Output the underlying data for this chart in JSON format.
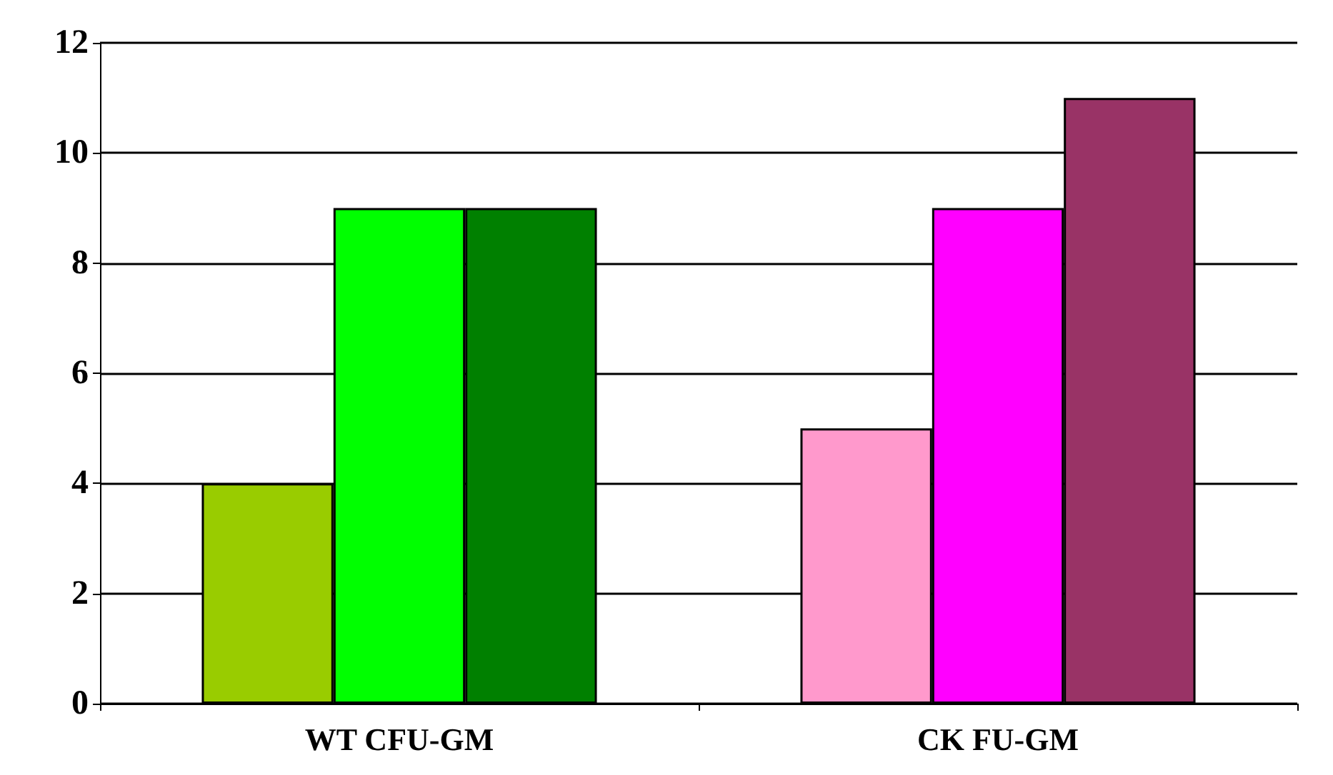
{
  "chart_data": {
    "type": "bar",
    "categories": [
      "WT CFU-GM",
      "CK FU-GM"
    ],
    "series": [
      {
        "values": [
          4,
          5
        ],
        "colors": [
          "#99cc00",
          "#ff99cc"
        ]
      },
      {
        "values": [
          9,
          9
        ],
        "colors": [
          "#00ff00",
          "#ff00ff"
        ]
      },
      {
        "values": [
          9,
          11
        ],
        "colors": [
          "#008000",
          "#993366"
        ]
      }
    ],
    "ylim": [
      0,
      12
    ],
    "yticks": [
      0,
      2,
      4,
      6,
      8,
      10,
      12
    ],
    "grid": "y"
  }
}
